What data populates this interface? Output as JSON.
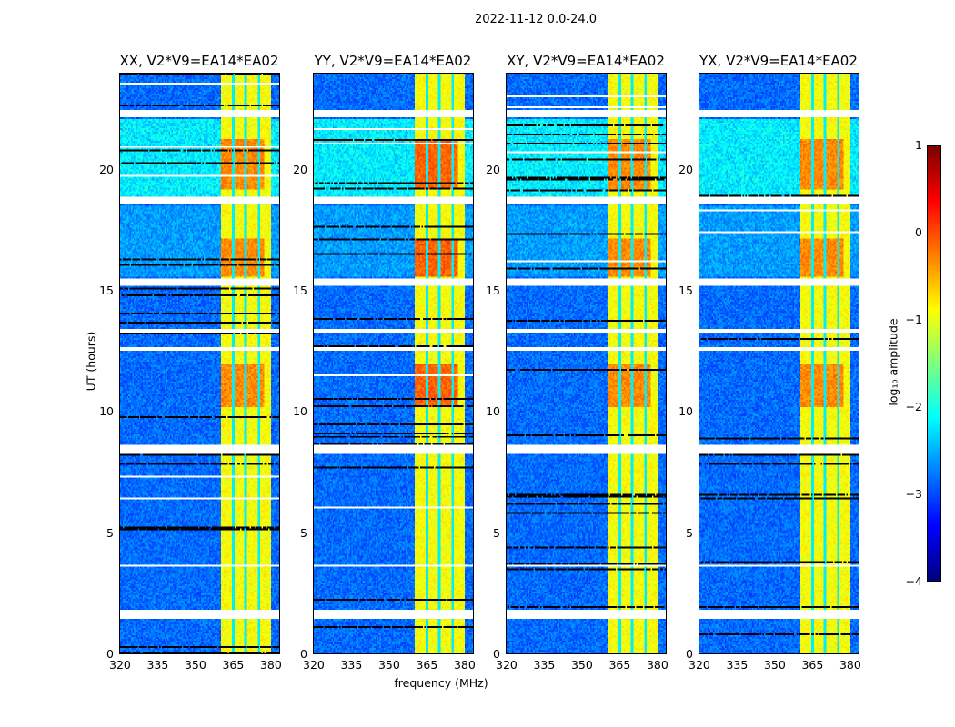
{
  "chart_data": {
    "type": "heatmap",
    "title": "2022-11-12 0.0-24.0",
    "xlabel": "frequency (MHz)",
    "ylabel": "UT (hours)",
    "xlim": [
      320,
      384
    ],
    "ylim": [
      0,
      24
    ],
    "xticks": [
      "320",
      "335",
      "350",
      "365",
      "380"
    ],
    "xtick_values": [
      320,
      335,
      350,
      365,
      380
    ],
    "yticks": [
      "0",
      "5",
      "10",
      "15",
      "20"
    ],
    "ytick_values": [
      0,
      5,
      10,
      15,
      20
    ],
    "panels": [
      {
        "title": "XX, V2*V9=EA14*EA02"
      },
      {
        "title": "YY, V2*V9=EA14*EA02"
      },
      {
        "title": "XY, V2*V9=EA14*EA02"
      },
      {
        "title": "YX, V2*V9=EA14*EA02"
      }
    ],
    "colormap": "jet",
    "colorbar": {
      "label": "log₁₀ amplitude",
      "range": [
        -4,
        1
      ],
      "ticks": [
        "1",
        "0",
        "−1",
        "−2",
        "−3",
        "−4"
      ],
      "tick_values": [
        1,
        0,
        -1,
        -2,
        -3,
        -4
      ]
    },
    "rfi_band_mhz": [
      360.7,
      381
    ],
    "band_gaps_mhz": [
      365.5,
      370.5,
      376
    ],
    "flagged_hours": [
      [
        22.2,
        22.5
      ],
      [
        18.6,
        18.9
      ],
      [
        15.2,
        15.55
      ],
      [
        12.55,
        12.65
      ],
      [
        8.25,
        8.6
      ],
      [
        1.42,
        1.8
      ],
      [
        3.6,
        3.7
      ],
      [
        5.0,
        5.05
      ],
      [
        13.3,
        13.4
      ]
    ],
    "high_amplitude_hours": [
      [
        15.6,
        17.2
      ],
      [
        19.2,
        21.3
      ],
      [
        10.2,
        12.0
      ]
    ]
  }
}
